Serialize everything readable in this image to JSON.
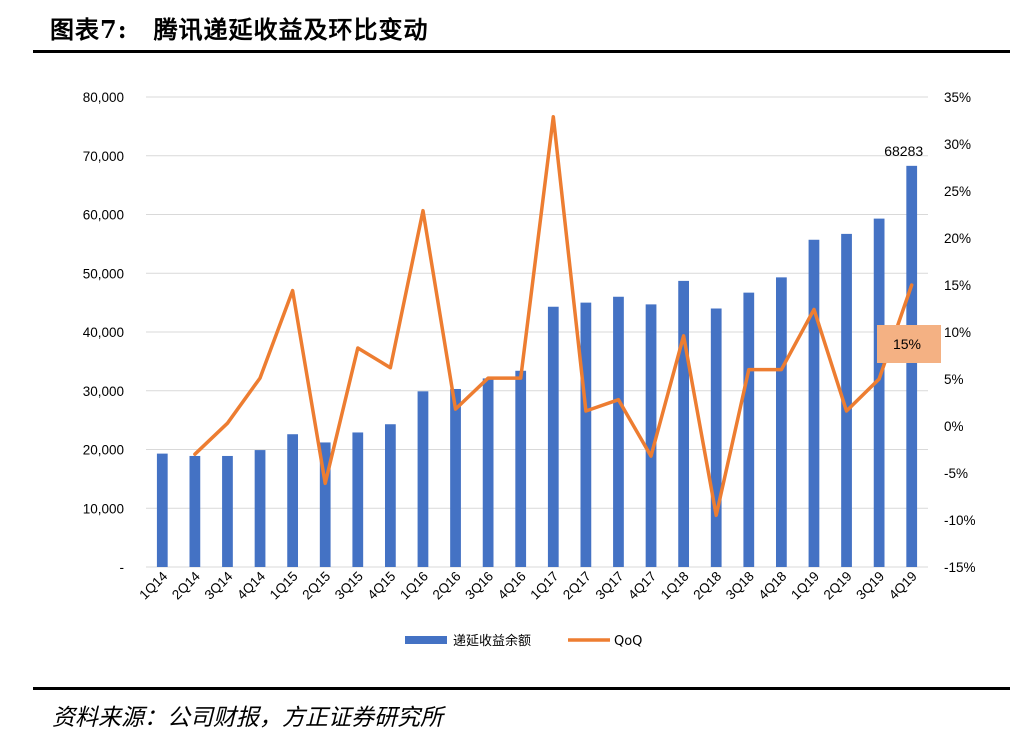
{
  "figure": {
    "label": "图表7:",
    "title": "腾讯递延收益及环比变动",
    "source": "资料来源：公司财报，方正证券研究所"
  },
  "chart_data": {
    "type": "bar+line",
    "categories": [
      "1Q14",
      "2Q14",
      "3Q14",
      "4Q14",
      "1Q15",
      "2Q15",
      "3Q15",
      "4Q15",
      "1Q16",
      "2Q16",
      "3Q16",
      "4Q16",
      "1Q17",
      "2Q17",
      "3Q17",
      "4Q17",
      "1Q18",
      "2Q18",
      "3Q18",
      "4Q18",
      "1Q19",
      "2Q19",
      "3Q19",
      "4Q19"
    ],
    "series": [
      {
        "name": "递延收益余额",
        "type": "bar",
        "axis": "left",
        "color": "#4472C4",
        "values": [
          19300,
          18900,
          18900,
          19900,
          22600,
          21200,
          22900,
          24300,
          29900,
          30300,
          32100,
          33400,
          44300,
          45000,
          46000,
          44700,
          48700,
          44000,
          46700,
          49300,
          55700,
          56700,
          59300,
          68283
        ]
      },
      {
        "name": "QoQ",
        "type": "line",
        "axis": "right",
        "color": "#ED7D31",
        "values": [
          null,
          -3.0,
          0.3,
          5.1,
          14.4,
          -6.1,
          8.3,
          6.2,
          22.9,
          1.8,
          5.1,
          5.1,
          32.9,
          1.6,
          2.8,
          -3.2,
          9.6,
          -9.5,
          6.0,
          6.0,
          12.4,
          1.6,
          5.0,
          15.0
        ]
      }
    ],
    "y_left": {
      "min": 0,
      "max": 80000,
      "ticks": [
        0,
        10000,
        20000,
        30000,
        40000,
        50000,
        60000,
        70000,
        80000
      ],
      "tick_labels": [
        "-",
        "10,000",
        "20,000",
        "30,000",
        "40,000",
        "50,000",
        "60,000",
        "70,000",
        "80,000"
      ]
    },
    "y_right": {
      "min": -15,
      "max": 35,
      "ticks": [
        -15,
        -10,
        -5,
        0,
        5,
        10,
        15,
        20,
        25,
        30,
        35
      ],
      "tick_labels": [
        "-15%",
        "-10%",
        "-5%",
        "0%",
        "5%",
        "10%",
        "15%",
        "20%",
        "25%",
        "30%",
        "35%"
      ]
    },
    "annotations": [
      {
        "text": "68283",
        "category": "4Q19",
        "series": "递延收益余额"
      },
      {
        "text": "15%",
        "category": "4Q19",
        "series": "QoQ",
        "box_color": "#F4B183"
      }
    ],
    "legend": {
      "position": "bottom",
      "entries": [
        "递延收益余额",
        "QoQ"
      ]
    },
    "grid": "horizontal-left-axis"
  }
}
